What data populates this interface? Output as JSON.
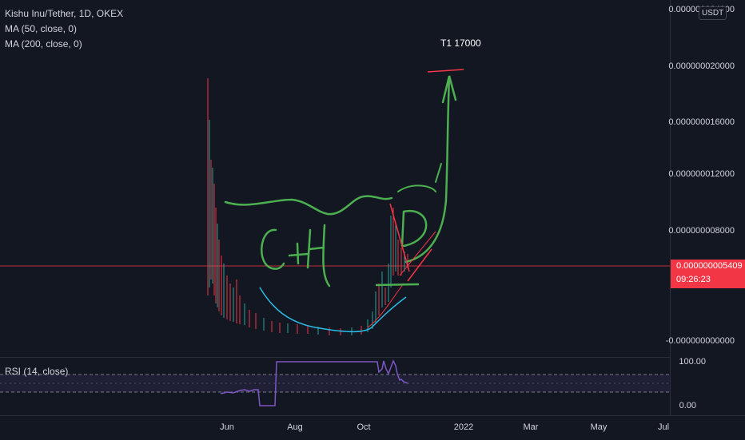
{
  "legend": {
    "title": "Kishu Inu/Tether, 1D, OKEX",
    "ma50": "MA (50, close, 0)",
    "ma200": "MA (200, close, 0)"
  },
  "price_axis": {
    "labels": [
      "0.000000024000",
      "0.000000020000",
      "0.000000016000",
      "0.000000012000",
      "0.000000008000",
      "-0.000000000000"
    ],
    "unit": "USDT",
    "last_price": "0.000000005409",
    "countdown": "09:26:23"
  },
  "rsi": {
    "label": "RSI (14, close)",
    "axis_labels": [
      "100.00",
      "0.00"
    ]
  },
  "time_axis": {
    "labels": [
      "Jun",
      "Aug",
      "Oct",
      "2022",
      "Mar",
      "May",
      "Jul"
    ]
  },
  "annotations": {
    "target": "T1 17000"
  },
  "colors": {
    "background": "#131722",
    "ma50": "#f23645",
    "ma200": "#2bbbe6",
    "drawing_green": "#4caf50",
    "rsi_line": "#7e57c2",
    "last_price_bg": "#f23645"
  }
}
